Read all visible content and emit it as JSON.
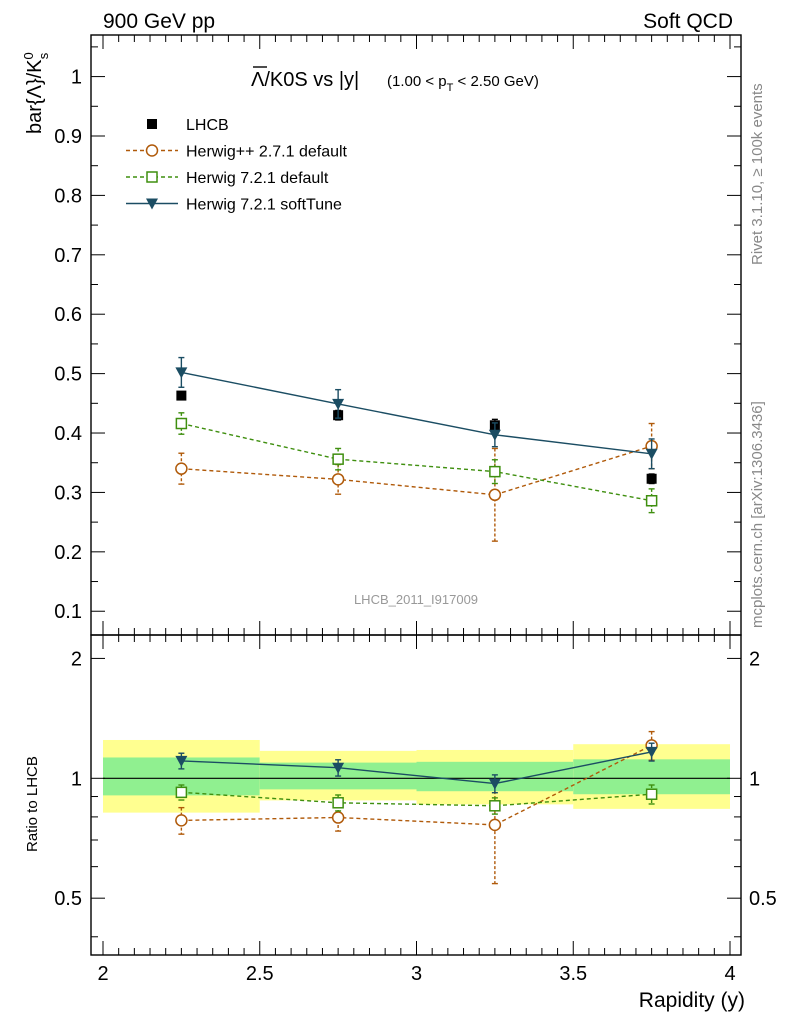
{
  "header": {
    "left": "900 GeV pp",
    "right": "Soft QCD"
  },
  "side_labels": {
    "rivet": "Rivet 3.1.10, ≥ 100k events",
    "mcplots": "mcplots.cern.ch [arXiv:1306.3436]"
  },
  "watermark": "LHCB_2011_I917009",
  "chart_data": [
    {
      "type": "line",
      "title_main": "Λ/K0S vs |y|",
      "title_overbar_glyph": "Λ",
      "title_rest": "/K0S vs |y|",
      "title_range_pre": "(1.00 < p",
      "title_range_sub": "T",
      "title_range_post": " < 2.50 GeV)",
      "ylabel_main": "bar{Λ}/K",
      "ylabel_sub": "s",
      "ylabel_sup": "0",
      "xlim": [
        2,
        4
      ],
      "ylim": [
        0.06,
        1.07
      ],
      "yticks": [
        0.1,
        0.2,
        0.3,
        0.4,
        0.5,
        0.6,
        0.7,
        0.8,
        0.9,
        1
      ],
      "ytick_labels": [
        "0.1",
        "0.2",
        "0.3",
        "0.4",
        "0.5",
        "0.6",
        "0.7",
        "0.8",
        "0.9",
        "1"
      ],
      "x": [
        2.25,
        2.75,
        3.25,
        3.75
      ],
      "series": [
        {
          "name": "LHCB",
          "color": "#000000",
          "marker": "square-filled",
          "line": "none",
          "values": [
            0.463,
            0.43,
            0.413,
            0.323
          ],
          "err": [
            0.006,
            0.008,
            0.01,
            0.008
          ],
          "xerr": 0.25
        },
        {
          "name": "Herwig++ 2.7.1 default",
          "color": "#b05a0a",
          "marker": "circle-open",
          "line": "dashed",
          "values": [
            0.34,
            0.322,
            0.296,
            0.378
          ],
          "err": [
            0.026,
            0.025,
            0.078,
            0.038
          ]
        },
        {
          "name": "Herwig 7.2.1 default",
          "color": "#3f8f0f",
          "marker": "square-open",
          "line": "dashed",
          "values": [
            0.416,
            0.356,
            0.335,
            0.286
          ],
          "err": [
            0.018,
            0.018,
            0.02,
            0.02
          ]
        },
        {
          "name": "Herwig 7.2.1 softTune",
          "color": "#1b4d63",
          "marker": "triangle-down-filled",
          "line": "solid",
          "values": [
            0.502,
            0.449,
            0.397,
            0.365
          ],
          "err": [
            0.025,
            0.024,
            0.02,
            0.025
          ]
        }
      ],
      "legend_position": "top-left"
    },
    {
      "type": "line",
      "ylabel": "Ratio to LHCB",
      "xlabel": "Rapidity (y)",
      "xlim": [
        2,
        4
      ],
      "ylim": [
        0.36,
        2.29
      ],
      "log_y": true,
      "xticks": [
        2,
        2.5,
        3,
        3.5,
        4
      ],
      "xtick_labels": [
        "2",
        "2.5",
        "3",
        "3.5",
        "4"
      ],
      "yticks": [
        0.5,
        1,
        2
      ],
      "ytick_labels": [
        "0.5",
        "1",
        "2"
      ],
      "x": [
        2.25,
        2.75,
        3.25,
        3.75
      ],
      "bands": {
        "inner_color": "#90f090",
        "outer_color": "#ffff90",
        "x_edges": [
          2,
          2.5,
          3,
          3.5,
          4
        ],
        "inner": [
          [
            0.906,
            1.128
          ],
          [
            0.938,
            1.095
          ],
          [
            0.928,
            1.1
          ],
          [
            0.912,
            1.116
          ]
        ],
        "outer": [
          [
            0.82,
            1.248
          ],
          [
            0.88,
            1.172
          ],
          [
            0.86,
            1.178
          ],
          [
            0.838,
            1.218
          ]
        ]
      },
      "series": [
        {
          "name": "Herwig++ 2.7.1 default",
          "color": "#b05a0a",
          "marker": "circle-open",
          "line": "dashed",
          "values": [
            0.784,
            0.797,
            0.764,
            1.21
          ],
          "err": [
            0.06,
            0.06,
            0.22,
            0.1
          ]
        },
        {
          "name": "Herwig 7.2.1 default",
          "color": "#3f8f0f",
          "marker": "square-open",
          "line": "dashed",
          "values": [
            0.922,
            0.868,
            0.853,
            0.912
          ],
          "err": [
            0.04,
            0.04,
            0.04,
            0.05
          ]
        },
        {
          "name": "Herwig 7.2.1 softTune",
          "color": "#1b4d63",
          "marker": "triangle-down-filled",
          "line": "solid",
          "values": [
            1.106,
            1.063,
            0.97,
            1.165
          ],
          "err": [
            0.05,
            0.05,
            0.05,
            0.06
          ]
        }
      ]
    }
  ]
}
